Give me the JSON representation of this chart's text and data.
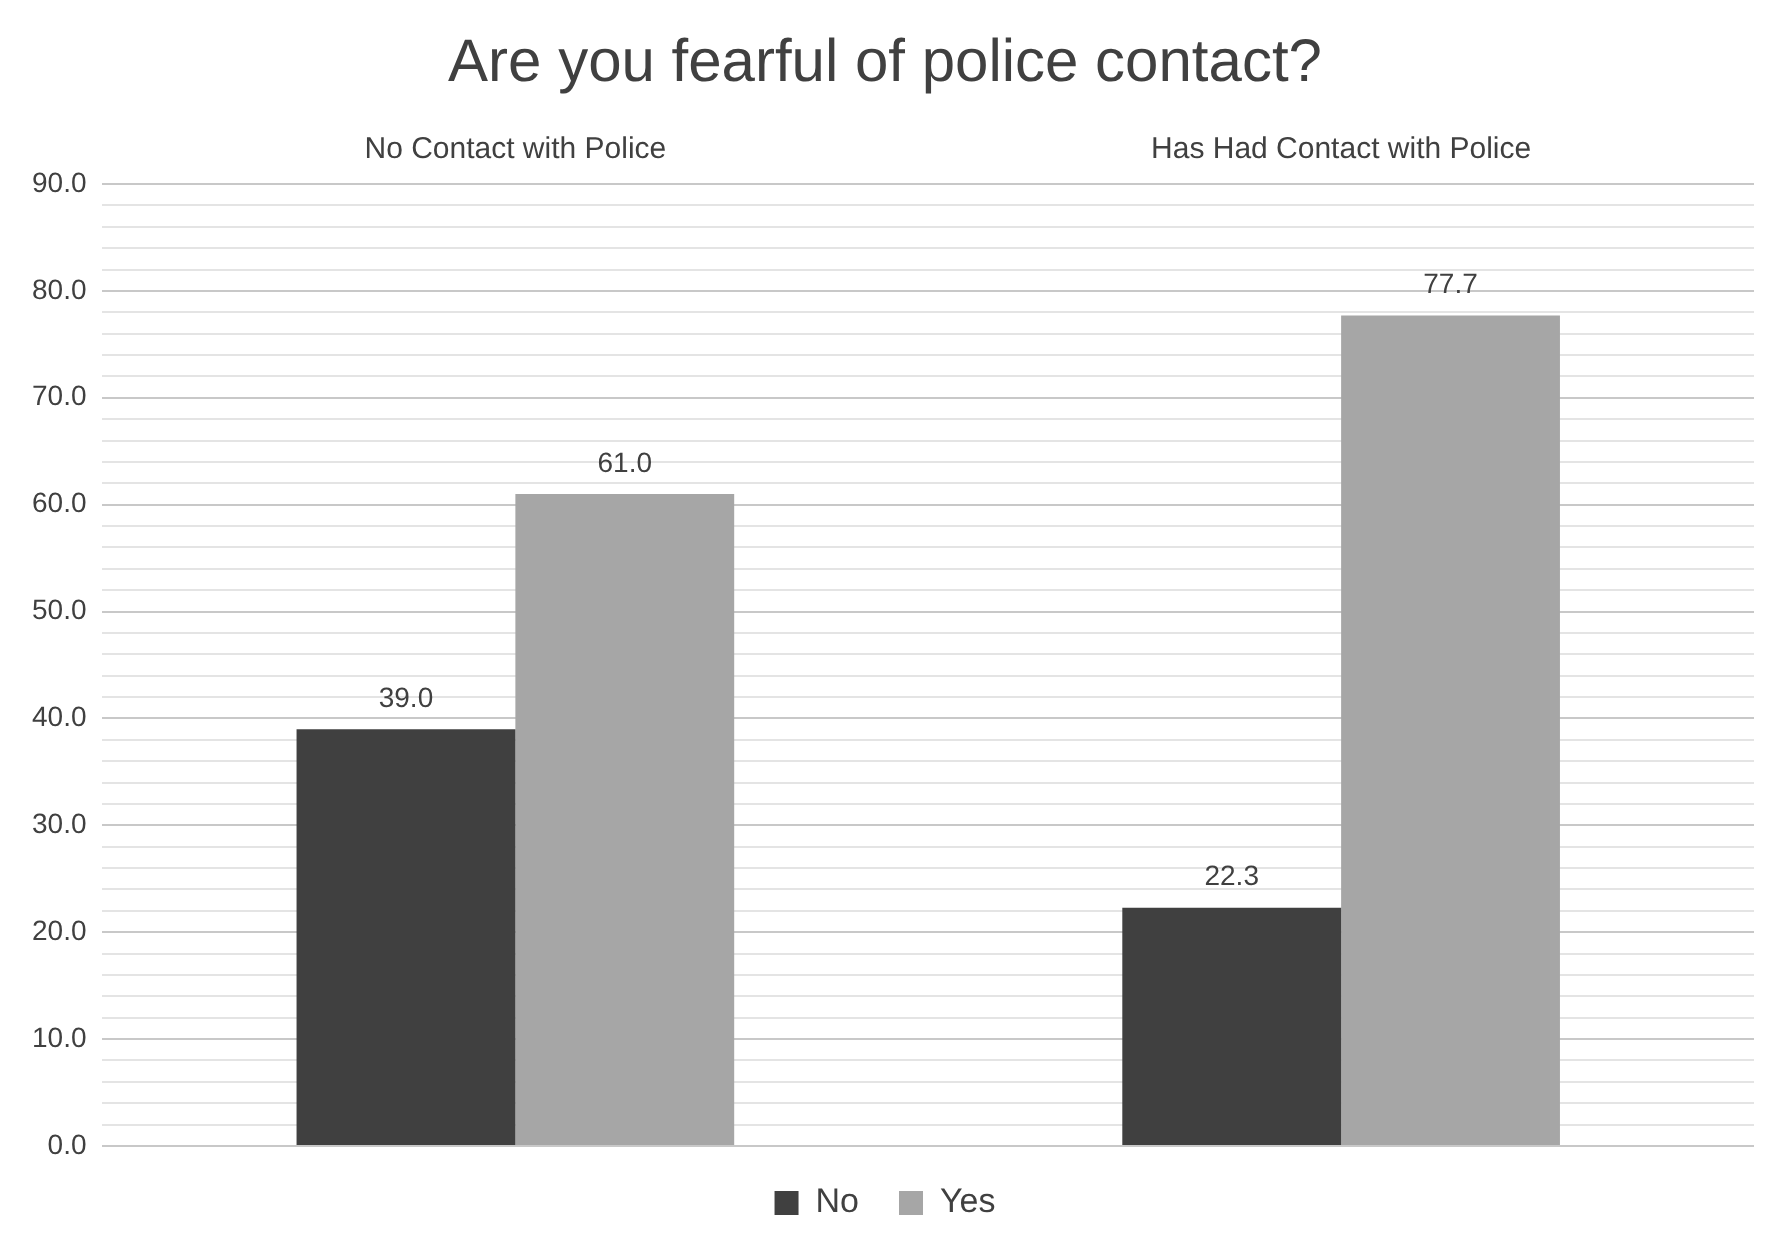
{
  "chart_data": {
    "type": "bar",
    "title": "Are you fearful of police contact?",
    "categories": [
      "No Contact with Police",
      "Has Had Contact with Police"
    ],
    "series": [
      {
        "name": "No",
        "color": "#404040",
        "values": [
          39.0,
          22.3
        ],
        "value_labels": [
          "39.0",
          "22.3"
        ]
      },
      {
        "name": "Yes",
        "color": "#a6a6a6",
        "values": [
          61.0,
          77.7
        ],
        "value_labels": [
          "61.0",
          "77.7"
        ]
      }
    ],
    "ylim": [
      0,
      90
    ],
    "yticks": [
      {
        "value": 0,
        "label": "0.0"
      },
      {
        "value": 2,
        "label": null
      },
      {
        "value": 4,
        "label": null
      },
      {
        "value": 6,
        "label": null
      },
      {
        "value": 8,
        "label": null
      },
      {
        "value": 10,
        "label": "10.0"
      },
      {
        "value": 12,
        "label": null
      },
      {
        "value": 14,
        "label": null
      },
      {
        "value": 16,
        "label": null
      },
      {
        "value": 18,
        "label": null
      },
      {
        "value": 20,
        "label": "20.0"
      },
      {
        "value": 22,
        "label": null
      },
      {
        "value": 24,
        "label": null
      },
      {
        "value": 26,
        "label": null
      },
      {
        "value": 28,
        "label": null
      },
      {
        "value": 30,
        "label": "30.0"
      },
      {
        "value": 32,
        "label": null
      },
      {
        "value": 34,
        "label": null
      },
      {
        "value": 36,
        "label": null
      },
      {
        "value": 38,
        "label": null
      },
      {
        "value": 40,
        "label": "40.0"
      },
      {
        "value": 42,
        "label": null
      },
      {
        "value": 44,
        "label": null
      },
      {
        "value": 46,
        "label": null
      },
      {
        "value": 48,
        "label": null
      },
      {
        "value": 50,
        "label": "50.0"
      },
      {
        "value": 52,
        "label": null
      },
      {
        "value": 54,
        "label": null
      },
      {
        "value": 56,
        "label": null
      },
      {
        "value": 58,
        "label": null
      },
      {
        "value": 60,
        "label": "60.0"
      },
      {
        "value": 62,
        "label": null
      },
      {
        "value": 64,
        "label": null
      },
      {
        "value": 66,
        "label": null
      },
      {
        "value": 68,
        "label": null
      },
      {
        "value": 70,
        "label": "70.0"
      },
      {
        "value": 72,
        "label": null
      },
      {
        "value": 74,
        "label": null
      },
      {
        "value": 76,
        "label": null
      },
      {
        "value": 78,
        "label": null
      },
      {
        "value": 80,
        "label": "80.0"
      },
      {
        "value": 82,
        "label": null
      },
      {
        "value": 84,
        "label": null
      },
      {
        "value": 86,
        "label": null
      },
      {
        "value": 88,
        "label": null
      },
      {
        "value": 90,
        "label": "90.0"
      }
    ],
    "grid": "y",
    "legend": "bottom"
  }
}
